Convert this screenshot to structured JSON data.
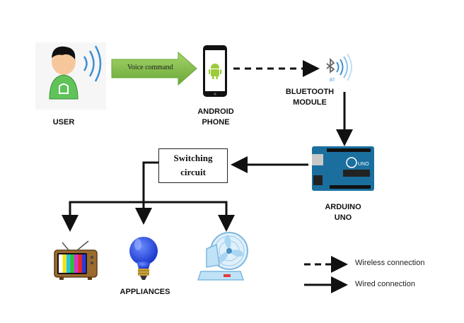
{
  "nodes": {
    "user": "USER",
    "android_phone": [
      "ANDROID",
      "PHONE"
    ],
    "bluetooth_module": [
      "BLUETOOTH",
      "MODULE"
    ],
    "arduino_uno": [
      "ARDUINO",
      "UNO"
    ],
    "switching_circuit": [
      "Switching",
      "circuit"
    ],
    "appliances": "APPLIANCES"
  },
  "edges": {
    "voice_command": "Voice command"
  },
  "legend": {
    "wireless": "Wireless connection",
    "wired": "Wired connection"
  },
  "icons": {
    "bluetooth_badge": "BT",
    "arduino_board": "UNO"
  },
  "colors": {
    "arrow_green": "#7cb342",
    "android_green": "#9ccc3c",
    "user_green": "#5fc35a",
    "bluetooth_blue": "#3b8fd4",
    "arduino_teal": "#1b6f9e"
  }
}
